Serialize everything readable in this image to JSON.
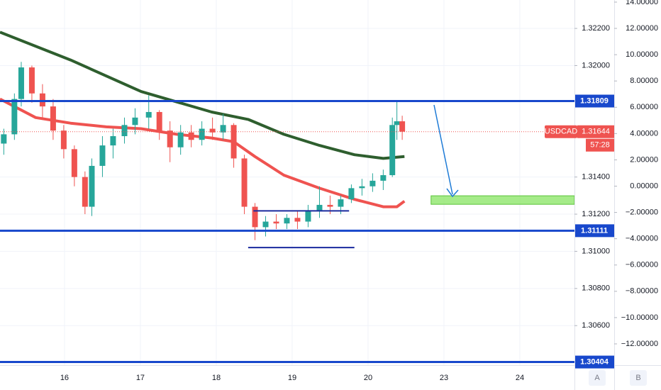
{
  "chart_data": {
    "type": "candlestick",
    "symbol": "USDCAD",
    "last_price": 1.31644,
    "countdown": "57:28",
    "xlim": [
      -0.85,
      6.72
    ],
    "xticks": [
      {
        "value": 0,
        "label": "16"
      },
      {
        "value": 1,
        "label": "17"
      },
      {
        "value": 2,
        "label": "18"
      },
      {
        "value": 3,
        "label": "19"
      },
      {
        "value": 4,
        "label": "20"
      },
      {
        "value": 5,
        "label": "23"
      },
      {
        "value": 6,
        "label": "24"
      }
    ],
    "ylim": [
      1.30387,
      1.32353
    ],
    "yticks": [
      {
        "value": 1.322,
        "label": "1.32200"
      },
      {
        "value": 1.32,
        "label": "1.32000"
      },
      {
        "value": 1.314,
        "label": "1.31400"
      },
      {
        "value": 1.312,
        "label": "1.31200"
      },
      {
        "value": 1.31,
        "label": "1.31000"
      },
      {
        "value": 1.308,
        "label": "1.30800"
      },
      {
        "value": 1.306,
        "label": "1.30600"
      }
    ],
    "y2lim": [
      -13.62,
      14.16
    ],
    "y2ticks": [
      {
        "value": 14,
        "label": "14.00000"
      },
      {
        "value": 12,
        "label": "12.00000"
      },
      {
        "value": 10,
        "label": "10.00000"
      },
      {
        "value": 8,
        "label": "8.00000"
      },
      {
        "value": 6,
        "label": "6.00000"
      },
      {
        "value": 4,
        "label": "4.00000"
      },
      {
        "value": 2,
        "label": "2.00000"
      },
      {
        "value": 0,
        "label": "0.00000"
      },
      {
        "value": -2,
        "label": "−2.00000"
      },
      {
        "value": -4,
        "label": "−4.00000"
      },
      {
        "value": -6,
        "label": "−6.00000"
      },
      {
        "value": -8,
        "label": "−8.00000"
      },
      {
        "value": -10,
        "label": "−10.00000"
      },
      {
        "value": -12,
        "label": "−12.00000"
      }
    ],
    "grid": true,
    "up_color": "#26a69a",
    "down_color": "#ef5350",
    "x": [
      -0.8,
      -0.66,
      -0.57,
      -0.43,
      -0.29,
      -0.15,
      -0.01,
      0.13,
      0.27,
      0.36,
      0.5,
      0.64,
      0.79,
      0.93,
      1.11,
      1.25,
      1.39,
      1.53,
      1.67,
      1.81,
      1.95,
      2.09,
      2.23,
      2.37,
      2.51,
      2.65,
      2.79,
      2.93,
      3.07,
      3.21,
      3.36,
      3.5,
      3.64,
      3.78,
      3.92,
      4.06,
      4.2,
      4.32,
      4.38,
      4.45
    ],
    "open": [
      1.3158,
      1.3163,
      1.3182,
      1.3199,
      1.3185,
      1.3178,
      1.3165,
      1.3155,
      1.314,
      1.3124,
      1.3146,
      1.3157,
      1.3162,
      1.3168,
      1.3172,
      1.3175,
      1.3165,
      1.3156,
      1.3164,
      1.316,
      1.3166,
      1.3164,
      1.3168,
      1.315,
      1.3124,
      1.3113,
      1.3116,
      1.3115,
      1.3118,
      1.3116,
      1.3122,
      1.3125,
      1.3124,
      1.3128,
      1.3134,
      1.3135,
      1.3138,
      1.3141,
      1.3168,
      1.317
    ],
    "high": [
      1.3166,
      1.3185,
      1.3202,
      1.32,
      1.319,
      1.3182,
      1.3168,
      1.3157,
      1.3143,
      1.315,
      1.3162,
      1.3166,
      1.3172,
      1.3177,
      1.3184,
      1.3176,
      1.317,
      1.3168,
      1.3168,
      1.317,
      1.3172,
      1.3174,
      1.3169,
      1.3152,
      1.3126,
      1.3119,
      1.312,
      1.312,
      1.3122,
      1.3125,
      1.3135,
      1.313,
      1.313,
      1.3136,
      1.3139,
      1.3142,
      1.3144,
      1.3172,
      1.3181,
      1.3173
    ],
    "low": [
      1.3152,
      1.316,
      1.3178,
      1.318,
      1.3172,
      1.316,
      1.315,
      1.3135,
      1.312,
      1.3119,
      1.314,
      1.315,
      1.3158,
      1.3163,
      1.3166,
      1.316,
      1.3148,
      1.3152,
      1.3156,
      1.3157,
      1.316,
      1.316,
      1.3145,
      1.312,
      1.3106,
      1.3108,
      1.3112,
      1.3112,
      1.3112,
      1.3113,
      1.3118,
      1.312,
      1.312,
      1.3126,
      1.313,
      1.3132,
      1.3133,
      1.314,
      1.316,
      1.316
    ],
    "close": [
      1.3163,
      1.3182,
      1.3199,
      1.3185,
      1.3178,
      1.3165,
      1.3155,
      1.314,
      1.3124,
      1.3146,
      1.3157,
      1.3162,
      1.3168,
      1.3172,
      1.3175,
      1.3165,
      1.3156,
      1.3164,
      1.316,
      1.3166,
      1.3164,
      1.3168,
      1.315,
      1.3124,
      1.3113,
      1.3116,
      1.3115,
      1.3118,
      1.3116,
      1.3122,
      1.3125,
      1.3124,
      1.3128,
      1.3134,
      1.3135,
      1.3138,
      1.3141,
      1.3168,
      1.317,
      1.31644
    ],
    "moving_averages": [
      {
        "color": "#2e5e2e",
        "x": [
          -0.85,
          0.08,
          1.01,
          1.94,
          2.42,
          2.89,
          3.36,
          3.82,
          4.2,
          4.48
        ],
        "values": [
          1.3218,
          1.3203,
          1.3186,
          1.3175,
          1.3171,
          1.3163,
          1.3157,
          1.3152,
          1.315,
          1.3151
        ]
      },
      {
        "color": "#ef5350",
        "x": [
          -0.85,
          -0.38,
          0.08,
          0.55,
          1.01,
          1.48,
          1.94,
          2.23,
          2.51,
          2.89,
          3.36,
          3.82,
          4.2,
          4.38,
          4.48
        ],
        "values": [
          1.3182,
          1.3172,
          1.3169,
          1.3167,
          1.3166,
          1.3163,
          1.3161,
          1.3159,
          1.3151,
          1.3141,
          1.3134,
          1.3128,
          1.3124,
          1.3124,
          1.3127
        ]
      }
    ],
    "levels": [
      {
        "value": 1.31809,
        "color": "#1848cc"
      },
      {
        "value": 1.31111,
        "color": "#1848cc"
      },
      {
        "value": 1.30404,
        "color": "#1848cc"
      }
    ],
    "range_lines": [
      {
        "x": [
          2.49,
          3.75
        ],
        "value": 1.31218,
        "color": "#1a2a9e"
      },
      {
        "x": [
          2.42,
          3.82
        ],
        "value": 1.3102,
        "color": "#1a2a9e"
      }
    ],
    "target_box": {
      "x": [
        4.83,
        6.72
      ],
      "top": 1.31299,
      "bottom": 1.31253,
      "color": "#8ee66b"
    },
    "buttons": [
      "A",
      "B"
    ]
  }
}
